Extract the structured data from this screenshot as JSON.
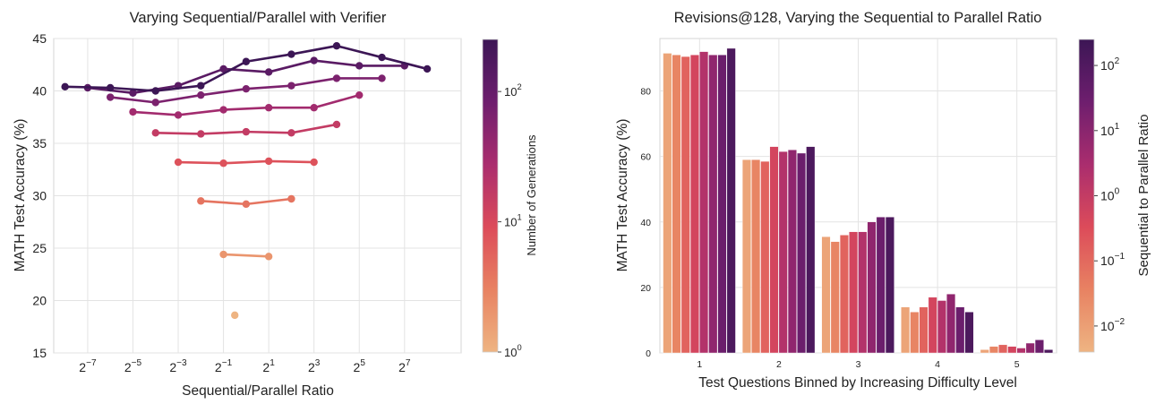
{
  "chart_data": [
    {
      "type": "line",
      "title": "Varying Sequential/Parallel with Verifier",
      "xlabel": "Sequential/Parallel Ratio",
      "ylabel": "MATH Test Accuracy (%)",
      "x_scale": "log2",
      "xlim_log2": [
        -8.5,
        9.5
      ],
      "xticks": [
        {
          "exp": -7,
          "base": "2",
          "sup": "−7"
        },
        {
          "exp": -5,
          "base": "2",
          "sup": "−5"
        },
        {
          "exp": -3,
          "base": "2",
          "sup": "−3"
        },
        {
          "exp": -1,
          "base": "2",
          "sup": "−1"
        },
        {
          "exp": 1,
          "base": "2",
          "sup": "1"
        },
        {
          "exp": 3,
          "base": "2",
          "sup": "3"
        },
        {
          "exp": 5,
          "base": "2",
          "sup": "5"
        },
        {
          "exp": 7,
          "base": "2",
          "sup": "7"
        }
      ],
      "ylim": [
        15,
        45
      ],
      "yticks": [
        "15",
        "20",
        "25",
        "30",
        "35",
        "40",
        "45"
      ],
      "grid": true,
      "colorbar": {
        "label": "Number of Generations",
        "scale": "log10",
        "range_log10": [
          0,
          2.4
        ],
        "ticks": [
          {
            "exp": 0,
            "base": "10",
            "sup": "0"
          },
          {
            "exp": 1,
            "base": "10",
            "sup": "1"
          },
          {
            "exp": 2,
            "base": "10",
            "sup": "2"
          }
        ]
      },
      "series": [
        {
          "generations_log2": 0,
          "points": [
            [
              -0.5,
              18.6
            ]
          ]
        },
        {
          "generations_log2": 1,
          "points": [
            [
              -1.0,
              24.4
            ],
            [
              1.0,
              24.2
            ]
          ]
        },
        {
          "generations_log2": 2,
          "points": [
            [
              -2.0,
              29.5
            ],
            [
              0.0,
              29.2
            ],
            [
              2.0,
              29.7
            ]
          ]
        },
        {
          "generations_log2": 3,
          "points": [
            [
              -3.0,
              33.2
            ],
            [
              -1.0,
              33.1
            ],
            [
              1.0,
              33.3
            ],
            [
              3.0,
              33.2
            ]
          ]
        },
        {
          "generations_log2": 4,
          "points": [
            [
              -4.0,
              36.0
            ],
            [
              -2.0,
              35.9
            ],
            [
              0.0,
              36.1
            ],
            [
              2.0,
              36.0
            ],
            [
              4.0,
              36.8
            ]
          ]
        },
        {
          "generations_log2": 5,
          "points": [
            [
              -5.0,
              38.0
            ],
            [
              -3.0,
              37.7
            ],
            [
              -1.0,
              38.2
            ],
            [
              1.0,
              38.4
            ],
            [
              3.0,
              38.4
            ],
            [
              5.0,
              39.6
            ]
          ]
        },
        {
          "generations_log2": 6,
          "points": [
            [
              -6.0,
              39.4
            ],
            [
              -4.0,
              38.9
            ],
            [
              -2.0,
              39.6
            ],
            [
              0.0,
              40.2
            ],
            [
              2.0,
              40.5
            ],
            [
              4.0,
              41.2
            ],
            [
              6.0,
              41.2
            ]
          ]
        },
        {
          "generations_log2": 7,
          "points": [
            [
              -7.0,
              40.3
            ],
            [
              -5.0,
              39.8
            ],
            [
              -3.0,
              40.5
            ],
            [
              -1.0,
              42.1
            ],
            [
              1.0,
              41.8
            ],
            [
              3.0,
              42.9
            ],
            [
              5.0,
              42.4
            ],
            [
              7.0,
              42.4
            ]
          ]
        },
        {
          "generations_log2": 8,
          "points": [
            [
              -8.0,
              40.4
            ],
            [
              -6.0,
              40.3
            ],
            [
              -4.0,
              40.0
            ],
            [
              -2.0,
              40.5
            ],
            [
              0.0,
              42.8
            ],
            [
              2.0,
              43.5
            ],
            [
              4.0,
              44.3
            ],
            [
              6.0,
              43.2
            ],
            [
              8.0,
              42.1
            ]
          ]
        }
      ]
    },
    {
      "type": "bar",
      "title": "Revisions@128, Varying the Sequential to Parallel Ratio",
      "xlabel": "Test Questions Binned by Increasing Difficulty Level",
      "ylabel": "MATH Test Accuracy (%)",
      "categories": [
        "1",
        "2",
        "3",
        "4",
        "5"
      ],
      "ylim": [
        0,
        96
      ],
      "yticks": [
        "0",
        "20",
        "40",
        "60",
        "80"
      ],
      "grid": true,
      "colorbar": {
        "label": "Sequential to Parallel Ratio",
        "scale": "log10",
        "range_log10": [
          -2.4,
          2.4
        ],
        "ticks": [
          {
            "exp": -2,
            "base": "10",
            "sup": "−2"
          },
          {
            "exp": -1,
            "base": "10",
            "sup": "−1"
          },
          {
            "exp": 0,
            "base": "10",
            "sup": "0"
          },
          {
            "exp": 1,
            "base": "10",
            "sup": "1"
          },
          {
            "exp": 2,
            "base": "10",
            "sup": "2"
          }
        ]
      },
      "ratio_log10": [
        -2.1,
        -1.5,
        -0.9,
        -0.3,
        0.3,
        0.9,
        1.5,
        2.1
      ],
      "values": [
        [
          91.5,
          91.0,
          90.5,
          91.0,
          92.0,
          91.0,
          91.0,
          93.0
        ],
        [
          59.0,
          59.0,
          58.5,
          63.0,
          61.5,
          62.0,
          61.0,
          63.0
        ],
        [
          35.5,
          34.0,
          36.0,
          37.0,
          37.0,
          40.0,
          41.5,
          41.5
        ],
        [
          14.0,
          12.5,
          14.0,
          17.0,
          16.0,
          18.0,
          14.0,
          12.5
        ],
        [
          1.0,
          2.0,
          2.5,
          2.0,
          1.5,
          3.0,
          4.0,
          1.0
        ]
      ]
    }
  ]
}
